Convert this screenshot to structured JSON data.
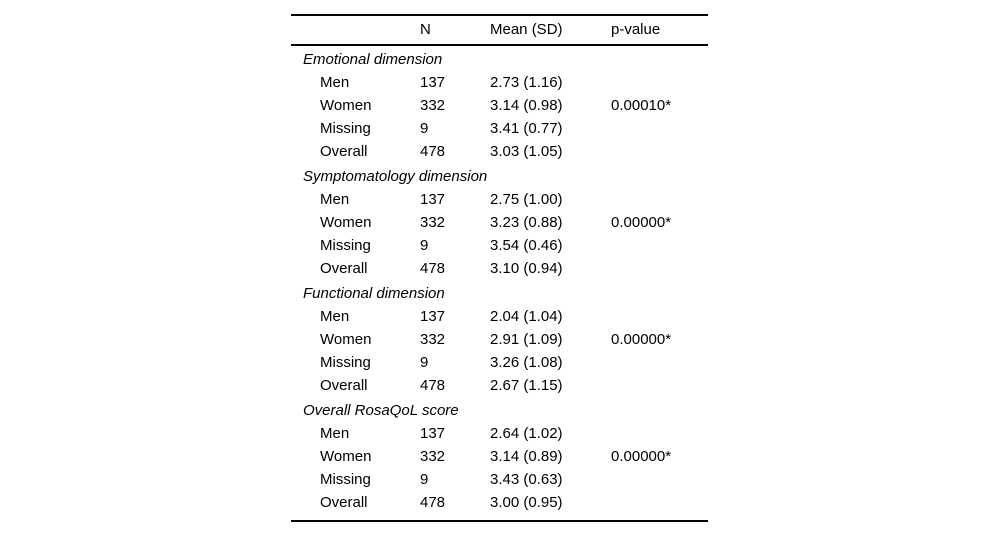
{
  "table": {
    "header": {
      "label": "",
      "n": "N",
      "mean_sd": "Mean (SD)",
      "p_value": "p-value"
    },
    "sections": [
      {
        "title": "Emotional dimension",
        "rows": [
          {
            "label": "Men",
            "n": "137",
            "mean_sd": "2.73 (1.16)",
            "p": ""
          },
          {
            "label": "Women",
            "n": "332",
            "mean_sd": "3.14 (0.98)",
            "p": "0.00010*"
          },
          {
            "label": "Missing",
            "n": "9",
            "mean_sd": "3.41 (0.77)",
            "p": ""
          },
          {
            "label": "Overall",
            "n": "478",
            "mean_sd": "3.03 (1.05)",
            "p": ""
          }
        ]
      },
      {
        "title": "Symptomatology dimension",
        "rows": [
          {
            "label": "Men",
            "n": "137",
            "mean_sd": "2.75 (1.00)",
            "p": ""
          },
          {
            "label": "Women",
            "n": "332",
            "mean_sd": "3.23 (0.88)",
            "p": "0.00000*"
          },
          {
            "label": "Missing",
            "n": "9",
            "mean_sd": "3.54 (0.46)",
            "p": ""
          },
          {
            "label": "Overall",
            "n": "478",
            "mean_sd": "3.10 (0.94)",
            "p": ""
          }
        ]
      },
      {
        "title": "Functional dimension",
        "rows": [
          {
            "label": "Men",
            "n": "137",
            "mean_sd": "2.04 (1.04)",
            "p": ""
          },
          {
            "label": "Women",
            "n": "332",
            "mean_sd": "2.91 (1.09)",
            "p": "0.00000*"
          },
          {
            "label": "Missing",
            "n": "9",
            "mean_sd": "3.26 (1.08)",
            "p": ""
          },
          {
            "label": "Overall",
            "n": "478",
            "mean_sd": "2.67 (1.15)",
            "p": ""
          }
        ]
      },
      {
        "title": "Overall RosaQoL score",
        "rows": [
          {
            "label": "Men",
            "n": "137",
            "mean_sd": "2.64 (1.02)",
            "p": ""
          },
          {
            "label": "Women",
            "n": "332",
            "mean_sd": "3.14 (0.89)",
            "p": "0.00000*"
          },
          {
            "label": "Missing",
            "n": "9",
            "mean_sd": "3.43 (0.63)",
            "p": ""
          },
          {
            "label": "Overall",
            "n": "478",
            "mean_sd": "3.00 (0.95)",
            "p": ""
          }
        ]
      }
    ],
    "text_color": "#000000",
    "background_color": "#ffffff"
  }
}
